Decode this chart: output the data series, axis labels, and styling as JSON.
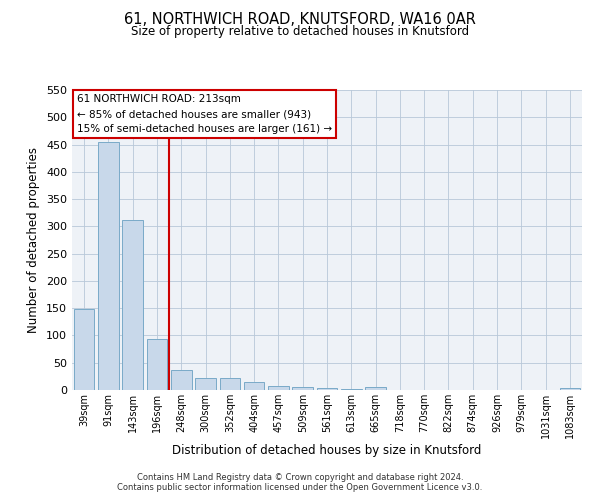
{
  "title": "61, NORTHWICH ROAD, KNUTSFORD, WA16 0AR",
  "subtitle": "Size of property relative to detached houses in Knutsford",
  "xlabel": "Distribution of detached houses by size in Knutsford",
  "ylabel": "Number of detached properties",
  "bar_labels": [
    "39sqm",
    "91sqm",
    "143sqm",
    "196sqm",
    "248sqm",
    "300sqm",
    "352sqm",
    "404sqm",
    "457sqm",
    "509sqm",
    "561sqm",
    "613sqm",
    "665sqm",
    "718sqm",
    "770sqm",
    "822sqm",
    "874sqm",
    "926sqm",
    "979sqm",
    "1031sqm",
    "1083sqm"
  ],
  "bar_values": [
    148,
    455,
    312,
    93,
    37,
    22,
    22,
    14,
    8,
    5,
    3,
    2,
    5,
    0,
    0,
    0,
    0,
    0,
    0,
    0,
    3
  ],
  "bar_color": "#c8d8ea",
  "bar_edgecolor": "#7aaac8",
  "ylim": [
    0,
    550
  ],
  "yticks": [
    0,
    50,
    100,
    150,
    200,
    250,
    300,
    350,
    400,
    450,
    500,
    550
  ],
  "property_line_x": 3.5,
  "annotation_title": "61 NORTHWICH ROAD: 213sqm",
  "annotation_line1": "← 85% of detached houses are smaller (943)",
  "annotation_line2": "15% of semi-detached houses are larger (161) →",
  "annotation_box_color": "#ffffff",
  "annotation_box_edgecolor": "#cc0000",
  "vline_color": "#cc0000",
  "background_color": "#eef2f7",
  "footer_line1": "Contains HM Land Registry data © Crown copyright and database right 2024.",
  "footer_line2": "Contains public sector information licensed under the Open Government Licence v3.0."
}
